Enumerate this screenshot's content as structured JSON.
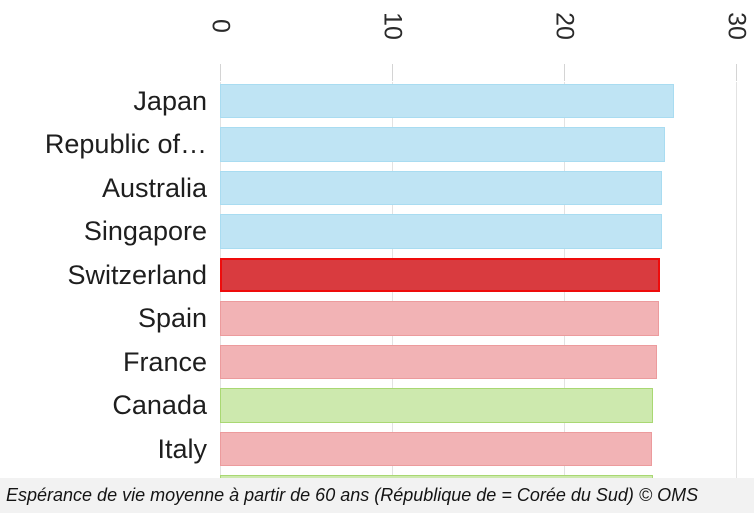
{
  "caption": {
    "text": "Espérance de vie moyenne à partir de 60 ans (République de = Corée du Sud) © OMS"
  },
  "chart_data": {
    "type": "bar",
    "orientation": "horizontal",
    "title": "",
    "x_axis": {
      "position": "top",
      "ticks": [
        0,
        10,
        20,
        30
      ],
      "range": [
        0,
        30
      ],
      "tick_label_rotation_deg": 90
    },
    "grid": true,
    "categories": [
      "Japan",
      "Republic of…",
      "Australia",
      "Singapore",
      "Switzerland",
      "Spain",
      "France",
      "Canada",
      "Italy"
    ],
    "values": [
      26.4,
      25.9,
      25.7,
      25.7,
      25.6,
      25.5,
      25.4,
      25.2,
      25.1
    ],
    "bar_color_keys": [
      "blue",
      "blue",
      "blue",
      "blue",
      "red",
      "pink",
      "pink",
      "green",
      "pink"
    ],
    "highlighted_category": "Switzerland",
    "partial_bottom_bar": {
      "value": 25.2,
      "color_key": "green",
      "note": "tenth row cut off at bottom edge of view"
    },
    "colors": {
      "blue": {
        "fill": "#bfe4f4",
        "border": "#a9dcf1"
      },
      "pink": {
        "fill": "#f2b3b5",
        "border": "#ec9b9d"
      },
      "green": {
        "fill": "#cde9ae",
        "border": "#a9d873"
      },
      "red": {
        "fill": "#d93b3f",
        "border": "#ee0c0c"
      },
      "gridline": "#e2e2e2",
      "tick": "#d4d4d4",
      "label_text": "#1e1e1e",
      "axis_text": "#2a2a2a",
      "caption_bg": "#f2f2f2",
      "caption_text": "#141414"
    }
  }
}
